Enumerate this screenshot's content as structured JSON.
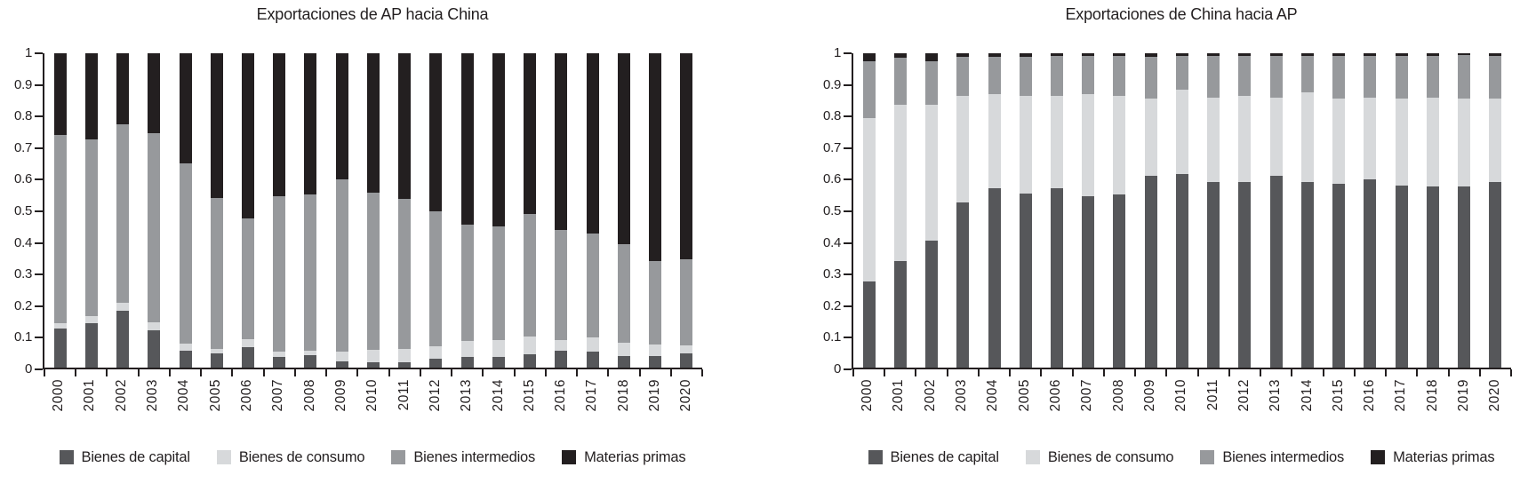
{
  "colors": {
    "capital": "#56575a",
    "consumo": "#d7d9db",
    "intermedios": "#97999c",
    "primas": "#231f20",
    "axis": "#231f20"
  },
  "legend": {
    "items": [
      {
        "label": "Bienes de capital",
        "color_key": "capital"
      },
      {
        "label": "Bienes de consumo",
        "color_key": "consumo"
      },
      {
        "label": "Bienes intermedios",
        "color_key": "intermedios"
      },
      {
        "label": "Materias primas",
        "color_key": "primas"
      }
    ]
  },
  "chart_data": [
    {
      "type": "bar",
      "stacked": true,
      "normalized": true,
      "title": "Exportaciones de AP hacia China",
      "ylim": [
        0,
        1
      ],
      "grid": false,
      "legend_position": "bottom",
      "y_ticks": [
        "1",
        "0.9",
        "0.8",
        "0.7",
        "0.6",
        "0.5",
        "0.4",
        "0.3",
        "0.2",
        "0.1",
        "0"
      ],
      "categories": [
        "2000",
        "2001",
        "2002",
        "2003",
        "2004",
        "2005",
        "2006",
        "2007",
        "2008",
        "2009",
        "2010",
        "2011",
        "2012",
        "2013",
        "2014",
        "2015",
        "2016",
        "2017",
        "2018",
        "2019",
        "2020"
      ],
      "series": [
        {
          "name": "Bienes de capital",
          "color_key": "capital",
          "values": [
            0.125,
            0.14,
            0.18,
            0.12,
            0.055,
            0.045,
            0.065,
            0.035,
            0.04,
            0.02,
            0.016,
            0.018,
            0.027,
            0.034,
            0.034,
            0.043,
            0.054,
            0.052,
            0.038,
            0.038,
            0.045
          ]
        },
        {
          "name": "Bienes de consumo",
          "color_key": "consumo",
          "values": [
            0.015,
            0.025,
            0.025,
            0.025,
            0.02,
            0.015,
            0.025,
            0.015,
            0.015,
            0.03,
            0.04,
            0.04,
            0.04,
            0.05,
            0.055,
            0.055,
            0.035,
            0.045,
            0.04,
            0.035,
            0.025
          ]
        },
        {
          "name": "Bienes intermedios",
          "color_key": "intermedios",
          "values": [
            0.6,
            0.56,
            0.57,
            0.6,
            0.575,
            0.48,
            0.385,
            0.495,
            0.495,
            0.55,
            0.5,
            0.48,
            0.43,
            0.37,
            0.36,
            0.39,
            0.35,
            0.33,
            0.315,
            0.267,
            0.275
          ]
        },
        {
          "name": "Materias primas",
          "color_key": "primas",
          "values": [
            0.26,
            0.275,
            0.225,
            0.255,
            0.35,
            0.46,
            0.525,
            0.455,
            0.45,
            0.4,
            0.444,
            0.462,
            0.503,
            0.546,
            0.551,
            0.512,
            0.561,
            0.573,
            0.607,
            0.66,
            0.655
          ]
        }
      ]
    },
    {
      "type": "bar",
      "stacked": true,
      "normalized": true,
      "title": "Exportaciones de China hacia AP",
      "ylim": [
        0,
        1
      ],
      "grid": false,
      "legend_position": "bottom",
      "y_ticks": [
        "1",
        "0.9",
        "0.8",
        "0.7",
        "0.6",
        "0.5",
        "0.4",
        "0.3",
        "0.2",
        "0.1",
        "0"
      ],
      "categories": [
        "2000",
        "2001",
        "2002",
        "2003",
        "2004",
        "2005",
        "2006",
        "2007",
        "2008",
        "2009",
        "2010",
        "2011",
        "2012",
        "2013",
        "2014",
        "2015",
        "2016",
        "2017",
        "2018",
        "2019",
        "2020"
      ],
      "series": [
        {
          "name": "Bienes de capital",
          "color_key": "capital",
          "values": [
            0.275,
            0.34,
            0.405,
            0.525,
            0.57,
            0.555,
            0.57,
            0.545,
            0.55,
            0.61,
            0.615,
            0.59,
            0.59,
            0.61,
            0.59,
            0.585,
            0.6,
            0.58,
            0.575,
            0.575,
            0.59
          ]
        },
        {
          "name": "Bienes de consumo",
          "color_key": "consumo",
          "values": [
            0.52,
            0.495,
            0.43,
            0.34,
            0.3,
            0.31,
            0.295,
            0.325,
            0.315,
            0.245,
            0.27,
            0.27,
            0.275,
            0.25,
            0.285,
            0.27,
            0.26,
            0.275,
            0.285,
            0.28,
            0.265
          ]
        },
        {
          "name": "Bienes intermedios",
          "color_key": "intermedios",
          "values": [
            0.18,
            0.15,
            0.14,
            0.125,
            0.12,
            0.125,
            0.127,
            0.122,
            0.127,
            0.135,
            0.108,
            0.132,
            0.127,
            0.132,
            0.117,
            0.137,
            0.132,
            0.137,
            0.132,
            0.14,
            0.137
          ]
        },
        {
          "name": "Materias primas",
          "color_key": "primas",
          "values": [
            0.025,
            0.015,
            0.025,
            0.01,
            0.01,
            0.01,
            0.008,
            0.008,
            0.008,
            0.01,
            0.007,
            0.008,
            0.008,
            0.008,
            0.008,
            0.008,
            0.008,
            0.008,
            0.008,
            0.005,
            0.008
          ]
        }
      ]
    }
  ]
}
